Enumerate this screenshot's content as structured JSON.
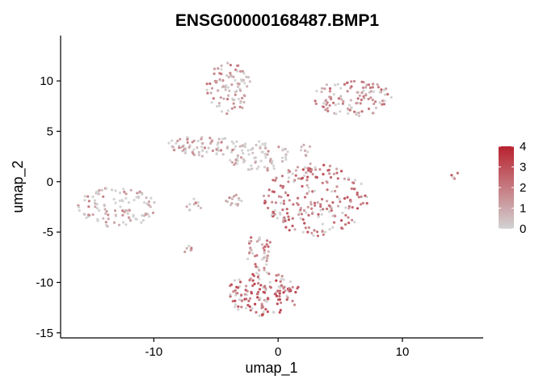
{
  "chart_data": {
    "type": "scatter",
    "title": "ENSG00000168487.BMP1",
    "xlabel": "umap_1",
    "ylabel": "umap_2",
    "xlim": [
      -17.5,
      16.5
    ],
    "ylim": [
      -15.5,
      14.5
    ],
    "x_ticks": [
      {
        "value": -10,
        "label": "-10"
      },
      {
        "value": 0,
        "label": "0"
      },
      {
        "value": 10,
        "label": "10"
      }
    ],
    "y_ticks": [
      {
        "value": 10,
        "label": "10"
      },
      {
        "value": 5,
        "label": "5"
      },
      {
        "value": 0,
        "label": "0"
      },
      {
        "value": -5,
        "label": "-5"
      },
      {
        "value": -10,
        "label": "-10"
      },
      {
        "value": -15,
        "label": "-15"
      }
    ],
    "grid": false,
    "color_scale": {
      "low_color": "#d3d3d3",
      "high_color": "#b8222f",
      "min": 0,
      "max": 4,
      "ticks": [
        {
          "value": 4,
          "label": "4"
        },
        {
          "value": 3,
          "label": "3"
        },
        {
          "value": 2,
          "label": "2"
        },
        {
          "value": 1,
          "label": "1"
        },
        {
          "value": 0,
          "label": "0"
        }
      ],
      "legend_position": "right"
    },
    "clusters": [
      {
        "cx": 3.0,
        "cy": -1.8,
        "rx": 4.2,
        "ry": 3.6,
        "n": 220,
        "mean_expr": 2.0
      },
      {
        "cx": -1.2,
        "cy": -11.2,
        "rx": 3.0,
        "ry": 2.2,
        "n": 140,
        "mean_expr": 2.4
      },
      {
        "cx": -1.5,
        "cy": -7.0,
        "rx": 1.0,
        "ry": 2.0,
        "n": 40,
        "mean_expr": 1.6
      },
      {
        "cx": -4.0,
        "cy": 9.3,
        "rx": 1.8,
        "ry": 2.6,
        "n": 90,
        "mean_expr": 1.3
      },
      {
        "cx": 6.0,
        "cy": 8.3,
        "rx": 3.2,
        "ry": 1.8,
        "n": 110,
        "mean_expr": 1.4
      },
      {
        "cx": -6.0,
        "cy": 3.5,
        "rx": 3.4,
        "ry": 1.0,
        "n": 80,
        "mean_expr": 0.9
      },
      {
        "cx": -13.0,
        "cy": -2.5,
        "rx": 3.2,
        "ry": 2.0,
        "n": 110,
        "mean_expr": 0.9
      },
      {
        "cx": -1.5,
        "cy": 2.5,
        "rx": 2.5,
        "ry": 1.5,
        "n": 70,
        "mean_expr": 0.6
      },
      {
        "cx": -3.5,
        "cy": -1.8,
        "rx": 0.8,
        "ry": 0.6,
        "n": 15,
        "mean_expr": 1.2
      },
      {
        "cx": -6.8,
        "cy": -2.3,
        "rx": 0.7,
        "ry": 0.6,
        "n": 10,
        "mean_expr": 1.4
      },
      {
        "cx": -7.3,
        "cy": -6.8,
        "rx": 0.4,
        "ry": 0.5,
        "n": 6,
        "mean_expr": 1.6
      },
      {
        "cx": 2.2,
        "cy": 3.2,
        "rx": 0.5,
        "ry": 0.7,
        "n": 8,
        "mean_expr": 1.2
      },
      {
        "cx": 14.2,
        "cy": 0.7,
        "rx": 0.3,
        "ry": 0.4,
        "n": 5,
        "mean_expr": 1.8
      }
    ]
  }
}
